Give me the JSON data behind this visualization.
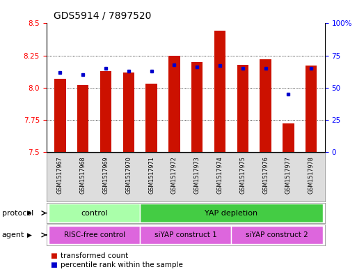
{
  "title": "GDS5914 / 7897520",
  "samples": [
    "GSM1517967",
    "GSM1517968",
    "GSM1517969",
    "GSM1517970",
    "GSM1517971",
    "GSM1517972",
    "GSM1517973",
    "GSM1517974",
    "GSM1517975",
    "GSM1517976",
    "GSM1517977",
    "GSM1517978"
  ],
  "transformed_count": [
    8.07,
    8.02,
    8.13,
    8.12,
    8.03,
    8.25,
    8.2,
    8.44,
    8.18,
    8.22,
    7.72,
    8.17
  ],
  "percentile_rank": [
    62,
    60,
    65,
    63,
    63,
    68,
    66,
    67,
    65,
    65,
    45,
    65
  ],
  "y_min": 7.5,
  "y_max": 8.5,
  "y_ticks": [
    7.5,
    7.75,
    8.0,
    8.25,
    8.5
  ],
  "y2_ticks": [
    0,
    25,
    50,
    75,
    100
  ],
  "bar_color": "#cc1100",
  "dot_color": "#0000cc",
  "plot_bg": "#ffffff",
  "protocol_colors": {
    "control": "#aaffaa",
    "YAP depletion": "#44cc44"
  },
  "agent_color": "#dd66dd",
  "sample_bg": "#dddddd",
  "protocol_groups": [
    {
      "label": "control",
      "start": 0,
      "end": 3
    },
    {
      "label": "YAP depletion",
      "start": 4,
      "end": 11
    }
  ],
  "agent_groups": [
    {
      "label": "RISC-free control",
      "start": 0,
      "end": 3
    },
    {
      "label": "siYAP construct 1",
      "start": 4,
      "end": 7
    },
    {
      "label": "siYAP construct 2",
      "start": 8,
      "end": 11
    }
  ],
  "legend_items": [
    {
      "label": "transformed count",
      "color": "#cc1100"
    },
    {
      "label": "percentile rank within the sample",
      "color": "#0000cc"
    }
  ],
  "title_fontsize": 10,
  "tick_fontsize": 7.5,
  "label_fontsize": 8
}
